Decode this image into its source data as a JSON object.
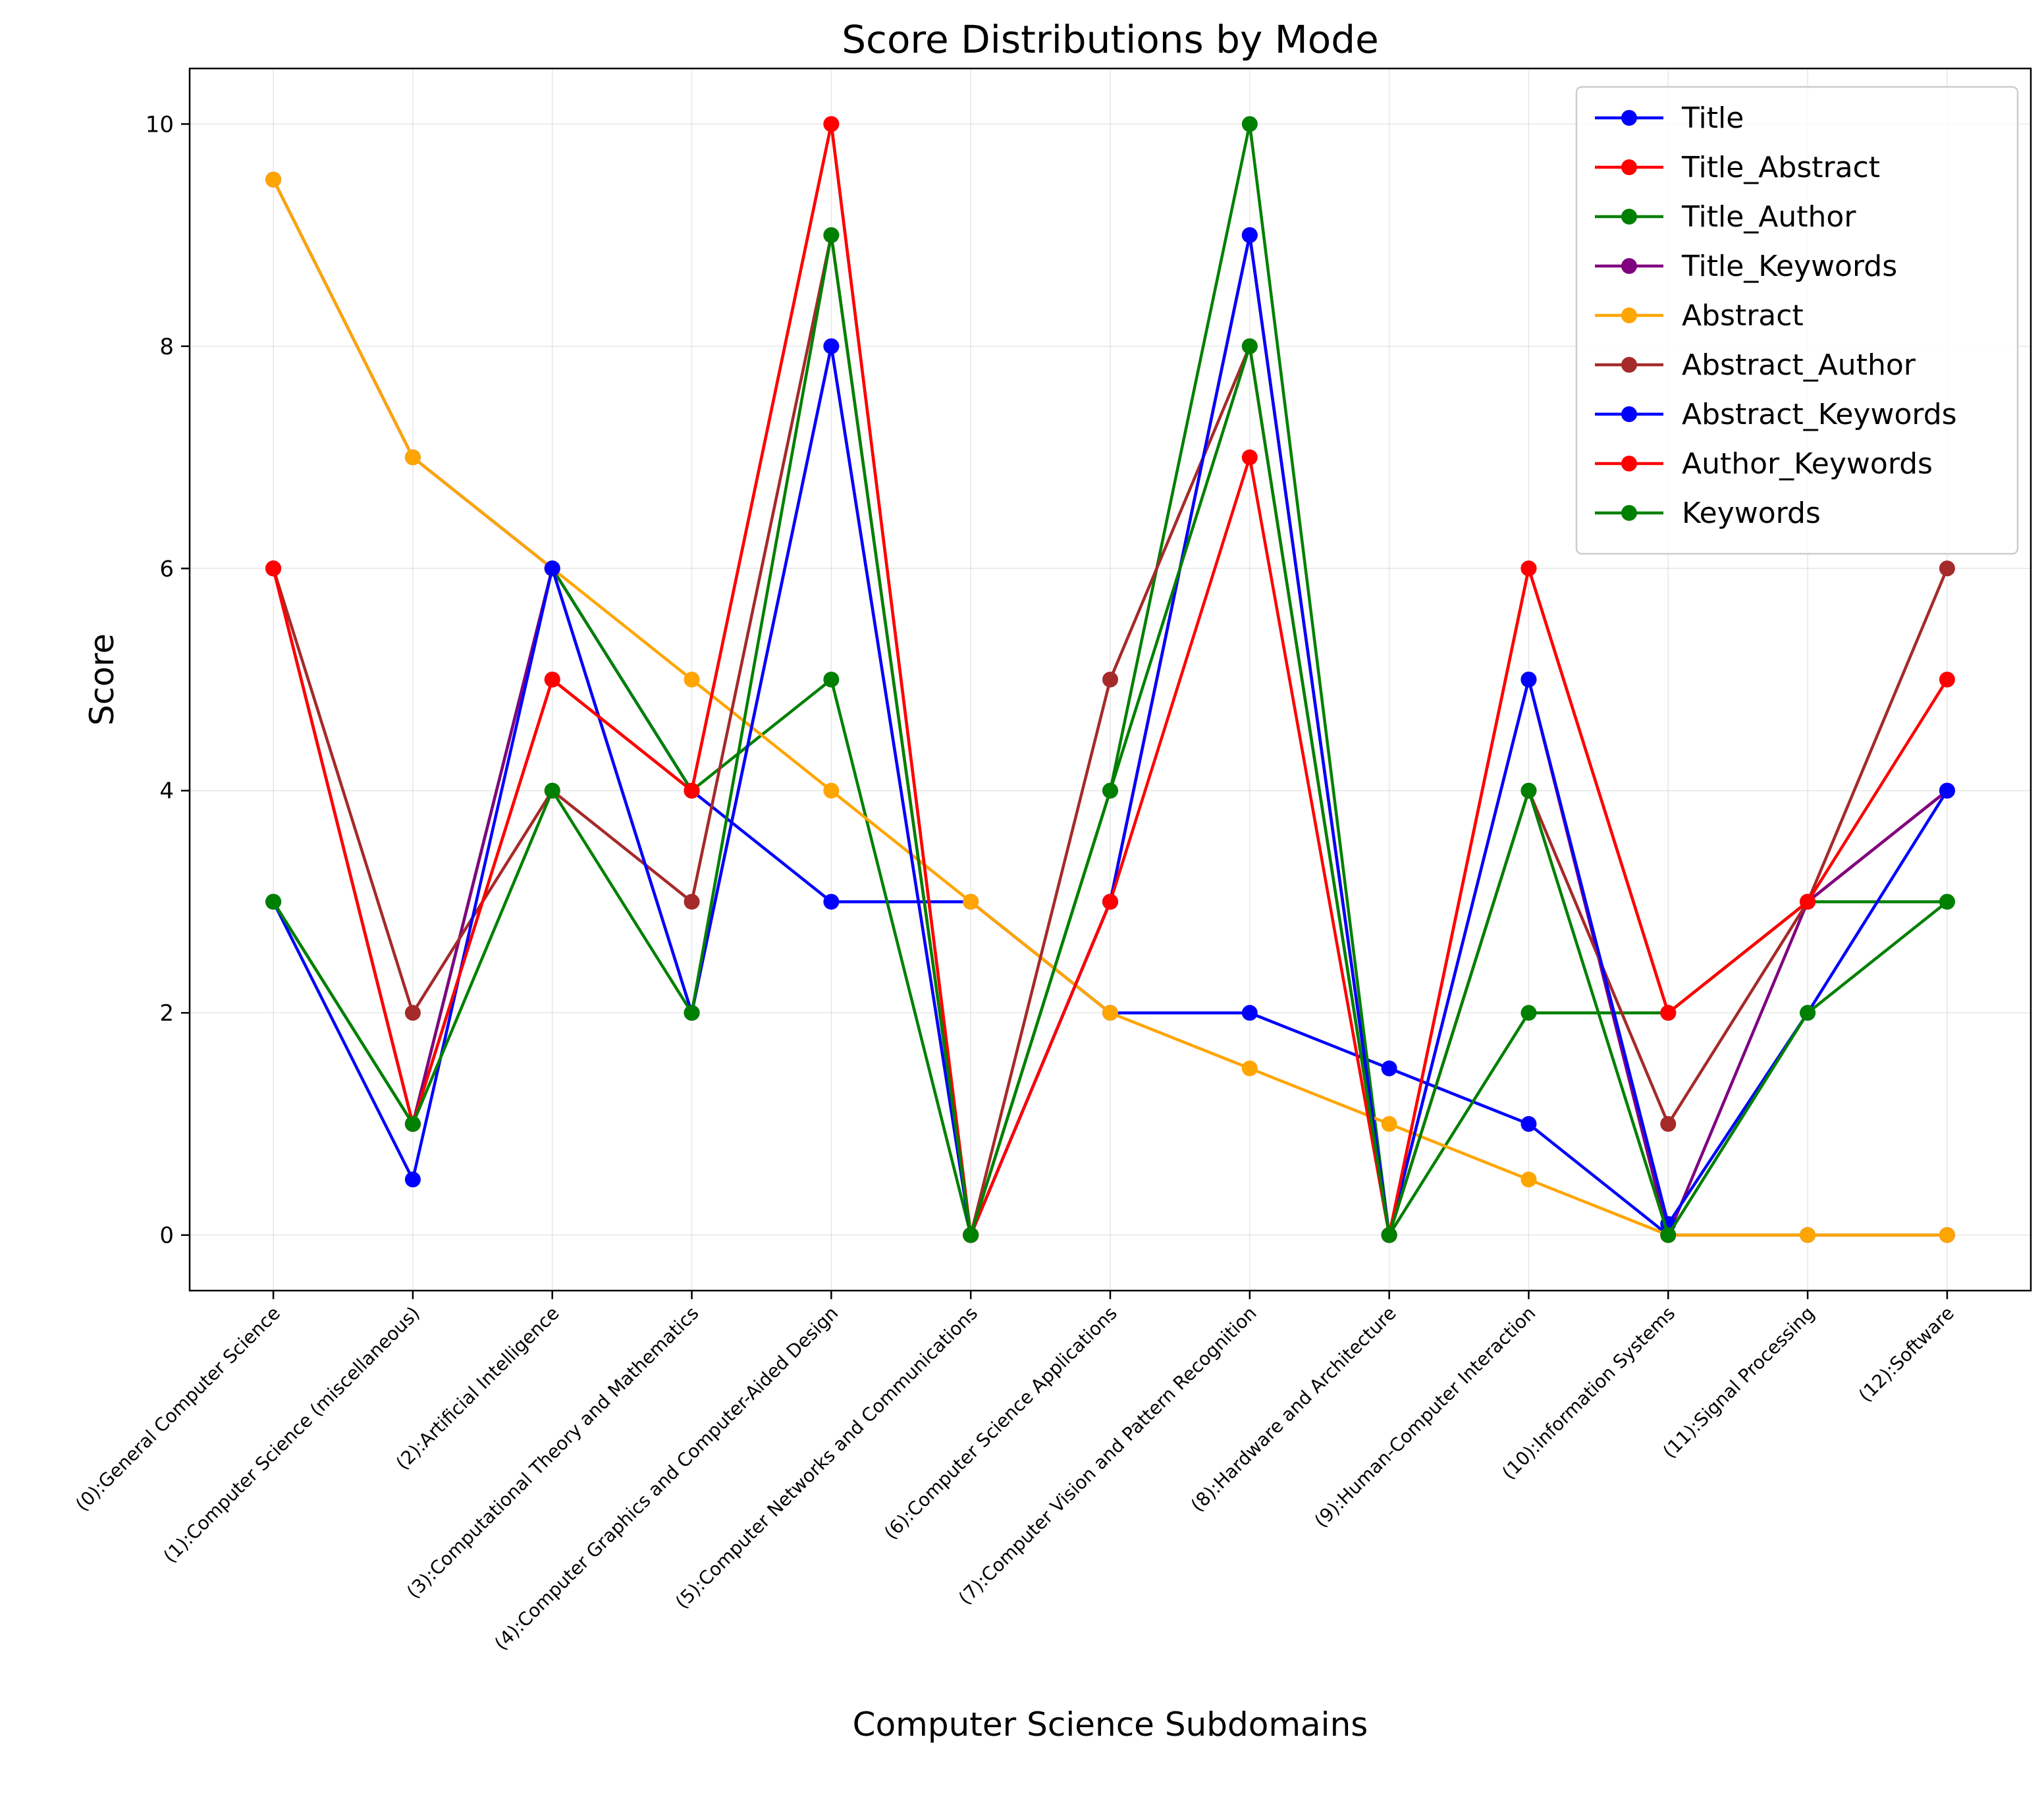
{
  "chart_data": {
    "type": "line",
    "title": "Score Distributions by Mode",
    "xlabel": "Computer Science Subdomains",
    "ylabel": "Score",
    "ylim": [
      -0.5,
      10.5
    ],
    "yticks": [
      0,
      2,
      4,
      6,
      8,
      10
    ],
    "grid": true,
    "legend_position": "top-right",
    "categories": [
      "(0):General Computer Science",
      "(1):Computer Science (miscellaneous)",
      "(2):Artificial Intelligence",
      "(3):Computational Theory and Mathematics",
      "(4):Computer Graphics and Computer-Aided Design",
      "(5):Computer Networks and Communications",
      "(6):Computer Science Applications",
      "(7):Computer Vision and Pattern Recognition",
      "(8):Hardware and Architecture",
      "(9):Human-Computer Interaction",
      "(10):Information Systems",
      "(11):Signal Processing",
      "(12):Software"
    ],
    "series": [
      {
        "name": "Title",
        "color": "#0000ff",
        "values": [
          9.5,
          7,
          6,
          4,
          3,
          3,
          2,
          2,
          1.5,
          1,
          0,
          0,
          0
        ]
      },
      {
        "name": "Title_Abstract",
        "color": "#ff0000",
        "values": [
          6,
          1,
          5,
          4,
          10,
          0,
          3,
          9,
          0,
          6,
          2,
          3,
          4
        ]
      },
      {
        "name": "Title_Author",
        "color": "#008000",
        "values": [
          3,
          1,
          6,
          4,
          5,
          0,
          4,
          10,
          0,
          2,
          2,
          3,
          3
        ]
      },
      {
        "name": "Title_Keywords",
        "color": "#800080",
        "values": [
          6,
          1,
          6,
          2,
          8,
          0,
          3,
          9,
          0,
          5,
          0,
          3,
          4
        ]
      },
      {
        "name": "Abstract",
        "color": "#ffa500",
        "values": [
          9.5,
          7,
          6,
          5,
          4,
          3,
          2,
          1.5,
          1,
          0.5,
          0,
          0,
          0
        ]
      },
      {
        "name": "Abstract_Author",
        "color": "#a52a2a",
        "values": [
          6,
          2,
          4,
          3,
          9,
          0,
          5,
          8,
          0,
          4,
          1,
          3,
          6
        ]
      },
      {
        "name": "Abstract_Keywords",
        "color": "#0000ff",
        "values": [
          3,
          0.5,
          6,
          2,
          8,
          0,
          3,
          9,
          0,
          5,
          0.1,
          2,
          4
        ]
      },
      {
        "name": "Author_Keywords",
        "color": "#ff0000",
        "values": [
          6,
          1,
          5,
          4,
          10,
          0,
          3,
          7,
          0,
          6,
          2,
          3,
          5
        ]
      },
      {
        "name": "Keywords",
        "color": "#008000",
        "values": [
          3,
          1,
          4,
          2,
          9,
          0,
          4,
          8,
          0,
          4,
          0,
          2,
          3
        ]
      }
    ]
  }
}
